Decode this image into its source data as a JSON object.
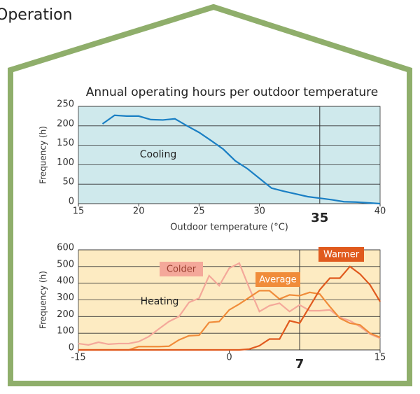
{
  "header": "Operation",
  "chart_data": [
    {
      "type": "line",
      "title": "Annual operating hours per outdoor temperature",
      "y_label": "Frequency (h)",
      "x_label": "Outdoor temperature (°C)",
      "annotation": "Cooling",
      "vline": 35,
      "background": "#cfe9ec",
      "grid": true,
      "x": [
        17,
        18,
        19,
        20,
        21,
        22,
        23,
        24,
        25,
        26,
        27,
        28,
        29,
        30,
        31,
        32,
        33,
        34,
        35,
        36,
        37,
        38,
        39,
        40
      ],
      "series": [
        {
          "color": "#1a7fc4",
          "values": [
            205,
            227,
            225,
            225,
            216,
            215,
            218,
            200,
            183,
            162,
            140,
            110,
            90,
            65,
            40,
            32,
            25,
            18,
            14,
            10,
            5,
            4,
            2,
            0
          ]
        }
      ],
      "xlim": [
        15,
        40
      ],
      "xticks": [
        15,
        20,
        25,
        30,
        40
      ],
      "ylim": [
        0,
        250
      ],
      "yticks": [
        0,
        50,
        100,
        150,
        200,
        250
      ]
    },
    {
      "type": "line",
      "y_label": "Frequency (h)",
      "annotation": "Heating",
      "vline": 7,
      "background": "#fdebc2",
      "grid": true,
      "x": [
        -15,
        -14,
        -13,
        -12,
        -11,
        -10,
        -9,
        -8,
        -7,
        -6,
        -5,
        -4,
        -3,
        -2,
        -1,
        0,
        1,
        2,
        3,
        4,
        5,
        6,
        7,
        8,
        9,
        10,
        11,
        12,
        13,
        14,
        15
      ],
      "series": [
        {
          "name": "Colder",
          "color": "#f4a89a",
          "values": [
            38,
            30,
            46,
            34,
            38,
            38,
            50,
            80,
            126,
            170,
            200,
            285,
            310,
            445,
            385,
            490,
            520,
            370,
            230,
            265,
            280,
            230,
            270,
            235,
            235,
            240,
            195,
            175,
            140,
            95,
            70
          ]
        },
        {
          "name": "Average",
          "color": "#f08c3a",
          "values": [
            0,
            0,
            0,
            0,
            0,
            0,
            20,
            20,
            20,
            22,
            60,
            85,
            88,
            165,
            170,
            240,
            275,
            315,
            355,
            355,
            305,
            330,
            325,
            345,
            335,
            260,
            190,
            160,
            150,
            100,
            75
          ]
        },
        {
          "name": "Warmer",
          "color": "#e05a1e",
          "values": [
            0,
            0,
            0,
            0,
            0,
            0,
            0,
            0,
            0,
            0,
            0,
            0,
            0,
            0,
            0,
            0,
            0,
            5,
            25,
            65,
            65,
            175,
            160,
            260,
            360,
            430,
            430,
            500,
            455,
            390,
            290
          ]
        }
      ],
      "xlim": [
        -15,
        15
      ],
      "xticks": [
        -15,
        0,
        15
      ],
      "ylim": [
        0,
        600
      ],
      "yticks": [
        0,
        100,
        200,
        300,
        400,
        500,
        600
      ]
    }
  ]
}
